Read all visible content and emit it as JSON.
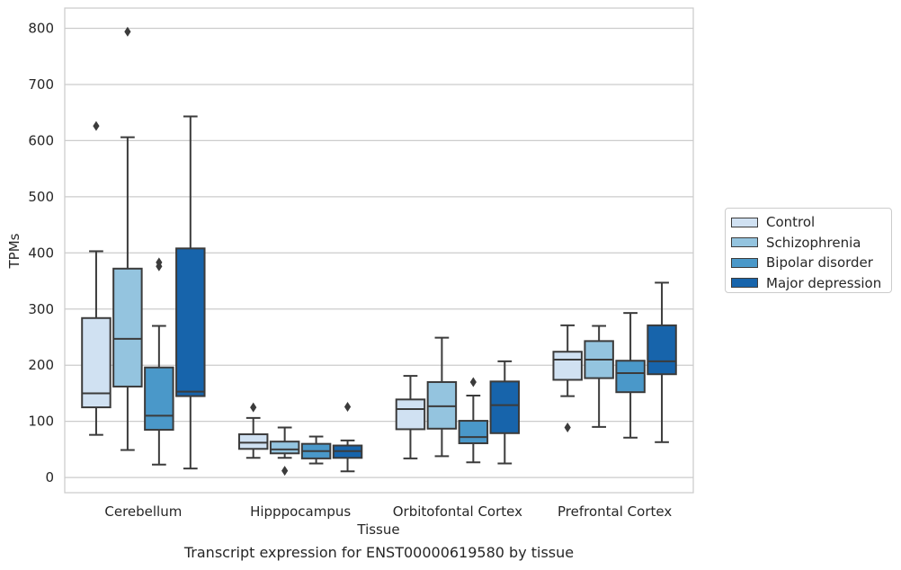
{
  "chart_data": {
    "type": "box",
    "caption": "Transcript expression for ENST00000619580 by tissue",
    "xlabel": "Tissue",
    "ylabel": "TPMs",
    "ylim": [
      -27,
      836
    ],
    "yticks": [
      0,
      100,
      200,
      300,
      400,
      500,
      600,
      700,
      800
    ],
    "grid": true,
    "legend_position": "right",
    "categories": [
      "Cerebellum",
      "Hipppocampus",
      "Orbitofontal Cortex",
      "Prefrontal Cortex"
    ],
    "series": [
      {
        "name": "Control",
        "color": "#d0e1f2",
        "boxes": [
          {
            "whisker_low": 76,
            "q1": 125,
            "median": 150,
            "q3": 284,
            "whisker_high": 403,
            "outliers": [
              626
            ]
          },
          {
            "whisker_low": 35,
            "q1": 51,
            "median": 62,
            "q3": 77,
            "whisker_high": 106,
            "outliers": [
              125
            ]
          },
          {
            "whisker_low": 34,
            "q1": 86,
            "median": 122,
            "q3": 139,
            "whisker_high": 181,
            "outliers": []
          },
          {
            "whisker_low": 145,
            "q1": 174,
            "median": 210,
            "q3": 224,
            "whisker_high": 271,
            "outliers": [
              89
            ]
          }
        ]
      },
      {
        "name": "Schizophrenia",
        "color": "#94c4df",
        "boxes": [
          {
            "whisker_low": 49,
            "q1": 162,
            "median": 247,
            "q3": 372,
            "whisker_high": 606,
            "outliers": [
              794
            ]
          },
          {
            "whisker_low": 35,
            "q1": 43,
            "median": 50,
            "q3": 64,
            "whisker_high": 89,
            "outliers": [
              12
            ]
          },
          {
            "whisker_low": 38,
            "q1": 87,
            "median": 127,
            "q3": 170,
            "whisker_high": 249,
            "outliers": []
          },
          {
            "whisker_low": 90,
            "q1": 177,
            "median": 210,
            "q3": 243,
            "whisker_high": 270,
            "outliers": []
          }
        ]
      },
      {
        "name": "Bipolar disorder",
        "color": "#4a98c9",
        "boxes": [
          {
            "whisker_low": 23,
            "q1": 85,
            "median": 110,
            "q3": 196,
            "whisker_high": 270,
            "outliers": [
              376,
              383
            ]
          },
          {
            "whisker_low": 25,
            "q1": 34,
            "median": 47,
            "q3": 60,
            "whisker_high": 73,
            "outliers": []
          },
          {
            "whisker_low": 27,
            "q1": 61,
            "median": 72,
            "q3": 101,
            "whisker_high": 146,
            "outliers": [
              170
            ]
          },
          {
            "whisker_low": 71,
            "q1": 152,
            "median": 186,
            "q3": 208,
            "whisker_high": 293,
            "outliers": []
          }
        ]
      },
      {
        "name": "Major depression",
        "color": "#1764ab",
        "boxes": [
          {
            "whisker_low": 16,
            "q1": 145,
            "median": 153,
            "q3": 408,
            "whisker_high": 643,
            "outliers": []
          },
          {
            "whisker_low": 11,
            "q1": 35,
            "median": 47,
            "q3": 57,
            "whisker_high": 66,
            "outliers": [
              126
            ]
          },
          {
            "whisker_low": 25,
            "q1": 79,
            "median": 129,
            "q3": 171,
            "whisker_high": 207,
            "outliers": []
          },
          {
            "whisker_low": 63,
            "q1": 184,
            "median": 207,
            "q3": 271,
            "whisker_high": 347,
            "outliers": []
          }
        ]
      }
    ]
  }
}
